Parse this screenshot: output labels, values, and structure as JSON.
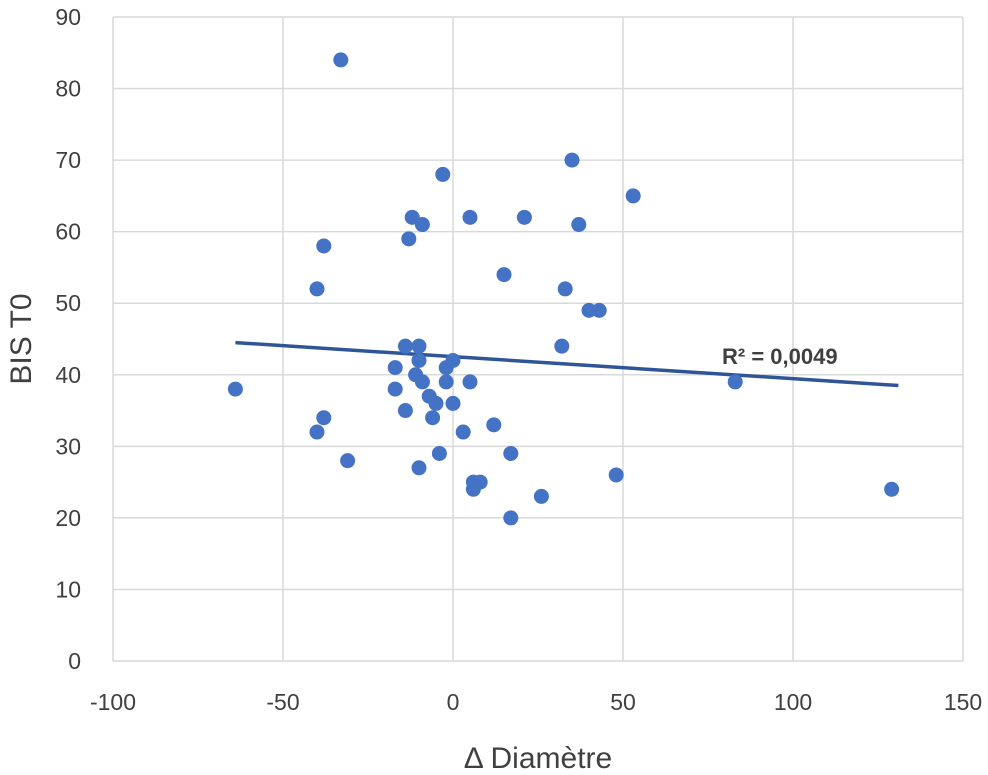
{
  "chart_data": {
    "type": "scatter",
    "title": "",
    "xlabel": "Δ Diamètre",
    "ylabel": "BIS T0",
    "xlim": [
      -100,
      150
    ],
    "ylim": [
      0,
      90
    ],
    "x_ticks": [
      -100,
      -50,
      0,
      50,
      100,
      150
    ],
    "y_ticks": [
      0,
      10,
      20,
      30,
      40,
      50,
      60,
      70,
      80,
      90
    ],
    "x_tick_labels": [
      "-100",
      "-50",
      "0",
      "50",
      "100",
      "150"
    ],
    "y_tick_labels": [
      "0",
      "10",
      "20",
      "30",
      "40",
      "50",
      "60",
      "70",
      "80",
      "90"
    ],
    "grid": true,
    "legend": "none",
    "marker_color": "#4472C4",
    "trendline_color": "#2F5597",
    "trendline": {
      "type": "linear",
      "x": [
        -64,
        131
      ],
      "y": [
        44.5,
        38.5
      ]
    },
    "annotation": "R² = 0,0049",
    "points": [
      {
        "x": -64,
        "y": 38
      },
      {
        "x": -40,
        "y": 52
      },
      {
        "x": -40,
        "y": 32
      },
      {
        "x": -38,
        "y": 58
      },
      {
        "x": -38,
        "y": 34
      },
      {
        "x": -33,
        "y": 84
      },
      {
        "x": -31,
        "y": 28
      },
      {
        "x": -17,
        "y": 41
      },
      {
        "x": -17,
        "y": 38
      },
      {
        "x": -14,
        "y": 44
      },
      {
        "x": -14,
        "y": 35
      },
      {
        "x": -13,
        "y": 59
      },
      {
        "x": -12,
        "y": 62
      },
      {
        "x": -11,
        "y": 40
      },
      {
        "x": -10,
        "y": 44
      },
      {
        "x": -10,
        "y": 42
      },
      {
        "x": -10,
        "y": 27
      },
      {
        "x": -9,
        "y": 61
      },
      {
        "x": -9,
        "y": 39
      },
      {
        "x": -7,
        "y": 37
      },
      {
        "x": -6,
        "y": 34
      },
      {
        "x": -5,
        "y": 36
      },
      {
        "x": -4,
        "y": 29
      },
      {
        "x": -3,
        "y": 68
      },
      {
        "x": -2,
        "y": 41
      },
      {
        "x": -2,
        "y": 39
      },
      {
        "x": 0,
        "y": 42
      },
      {
        "x": 0,
        "y": 36
      },
      {
        "x": 3,
        "y": 32
      },
      {
        "x": 5,
        "y": 62
      },
      {
        "x": 5,
        "y": 39
      },
      {
        "x": 6,
        "y": 25
      },
      {
        "x": 6,
        "y": 24
      },
      {
        "x": 8,
        "y": 25
      },
      {
        "x": 12,
        "y": 33
      },
      {
        "x": 15,
        "y": 54
      },
      {
        "x": 17,
        "y": 29
      },
      {
        "x": 17,
        "y": 20
      },
      {
        "x": 21,
        "y": 62
      },
      {
        "x": 26,
        "y": 23
      },
      {
        "x": 32,
        "y": 44
      },
      {
        "x": 33,
        "y": 52
      },
      {
        "x": 35,
        "y": 70
      },
      {
        "x": 37,
        "y": 61
      },
      {
        "x": 40,
        "y": 49
      },
      {
        "x": 43,
        "y": 49
      },
      {
        "x": 48,
        "y": 26
      },
      {
        "x": 53,
        "y": 65
      },
      {
        "x": 83,
        "y": 39
      },
      {
        "x": 129,
        "y": 24
      }
    ]
  }
}
